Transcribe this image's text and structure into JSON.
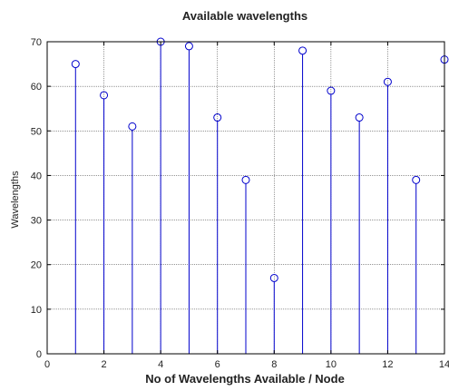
{
  "chart_data": {
    "type": "stem",
    "title": "Available wavelengths",
    "xlabel": "No of Wavelengths Available / Node",
    "ylabel": "Wavelengths",
    "x": [
      1,
      2,
      3,
      4,
      5,
      6,
      7,
      8,
      9,
      10,
      11,
      12,
      13,
      14
    ],
    "values": [
      65,
      58,
      51,
      70,
      69,
      53,
      39,
      17,
      68,
      59,
      53,
      61,
      39,
      66
    ],
    "xlim": [
      0,
      14
    ],
    "ylim": [
      0,
      70
    ],
    "xticks": [
      0,
      2,
      4,
      6,
      8,
      10,
      12,
      14
    ],
    "yticks": [
      0,
      10,
      20,
      30,
      40,
      50,
      60,
      70
    ],
    "grid": true,
    "marker": "circle",
    "color": "#0000cc"
  }
}
